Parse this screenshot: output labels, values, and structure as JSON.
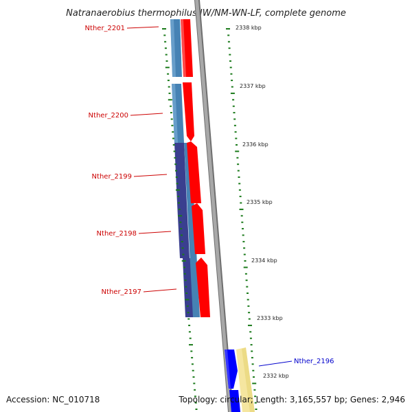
{
  "title": "Natranaerobius thermophilus JW/NM-WN-LF, complete genome",
  "footer": {
    "accession": "Accession: NC_010718",
    "summary": "Topology: circular; Length: 3,165,557 bp; Genes: 2,946"
  },
  "ticks": [
    "2338 kbp",
    "2337 kbp",
    "2336 kbp",
    "2335 kbp",
    "2334 kbp",
    "2333 kbp",
    "2332 kbp"
  ],
  "genes": [
    {
      "name": "Nther_2201",
      "color": "#cc0000"
    },
    {
      "name": "Nther_2200",
      "color": "#cc0000"
    },
    {
      "name": "Nther_2199",
      "color": "#cc0000"
    },
    {
      "name": "Nther_2198",
      "color": "#cc0000"
    },
    {
      "name": "Nther_2197",
      "color": "#cc0000"
    },
    {
      "name": "Nther_2196",
      "color": "#0000cc"
    }
  ],
  "colors": {
    "forward_cds": "#ff0000",
    "reverse_cds": "#4682b4",
    "operon": "#3a3f8f",
    "backbone": "#8c8c8c",
    "other_cds": "#0000ff",
    "other_feature": "#f5e6a0",
    "gc_skew": "#1a7a1a"
  }
}
